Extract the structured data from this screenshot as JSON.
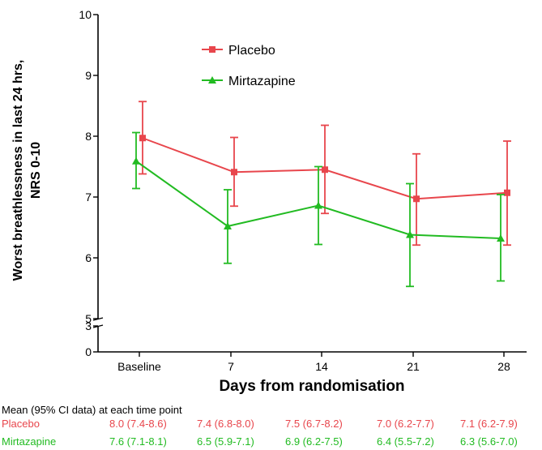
{
  "chart_data": {
    "type": "line",
    "title": "",
    "xlabel": "Days from randomisation",
    "ylabel_lines": [
      "Worst breathlessness in last 24 hrs,",
      "NRS 0-10"
    ],
    "categories": [
      "Baseline",
      "7",
      "14",
      "21",
      "28"
    ],
    "y_axis": {
      "broken": true,
      "lower_segment_ticks": [
        "0",
        "3"
      ],
      "upper_segment_ticks": [
        "5",
        "6",
        "7",
        "8",
        "9",
        "10"
      ],
      "upper_range": [
        5,
        10
      ],
      "lower_range": [
        0,
        3
      ]
    },
    "grid": false,
    "legend_position": "top-center",
    "series": [
      {
        "name": "Placebo",
        "color": "#e8464c",
        "marker": "square",
        "values": [
          7.97,
          7.41,
          7.45,
          6.97,
          7.07
        ],
        "ci_lower": [
          7.38,
          6.85,
          6.73,
          6.21,
          6.21
        ],
        "ci_upper": [
          8.57,
          7.98,
          8.18,
          7.71,
          7.92
        ]
      },
      {
        "name": "Mirtazapine",
        "color": "#22bb22",
        "marker": "triangle",
        "values": [
          7.59,
          6.52,
          6.86,
          6.38,
          6.32
        ],
        "ci_lower": [
          7.14,
          5.91,
          6.22,
          5.53,
          5.62
        ],
        "ci_upper": [
          8.06,
          7.12,
          7.5,
          7.22,
          7.04
        ]
      }
    ]
  },
  "summary_table": {
    "heading": "Mean (95% CI data) at each time point",
    "rows": [
      {
        "label": "Placebo",
        "color": "#e8464c",
        "cells": [
          "8.0 (7.4-8.6)",
          "7.4 (6.8-8.0)",
          "7.5 (6.7-8.2)",
          "7.0 (6.2-7.7)",
          "7.1 (6.2-7.9)"
        ]
      },
      {
        "label": "Mirtazapine",
        "color": "#22bb22",
        "cells": [
          "7.6 (7.1-8.1)",
          "6.5 (5.9-7.1)",
          "6.9 (6.2-7.5)",
          "6.4 (5.5-7.2)",
          "6.3 (5.6-7.0)"
        ]
      }
    ]
  }
}
